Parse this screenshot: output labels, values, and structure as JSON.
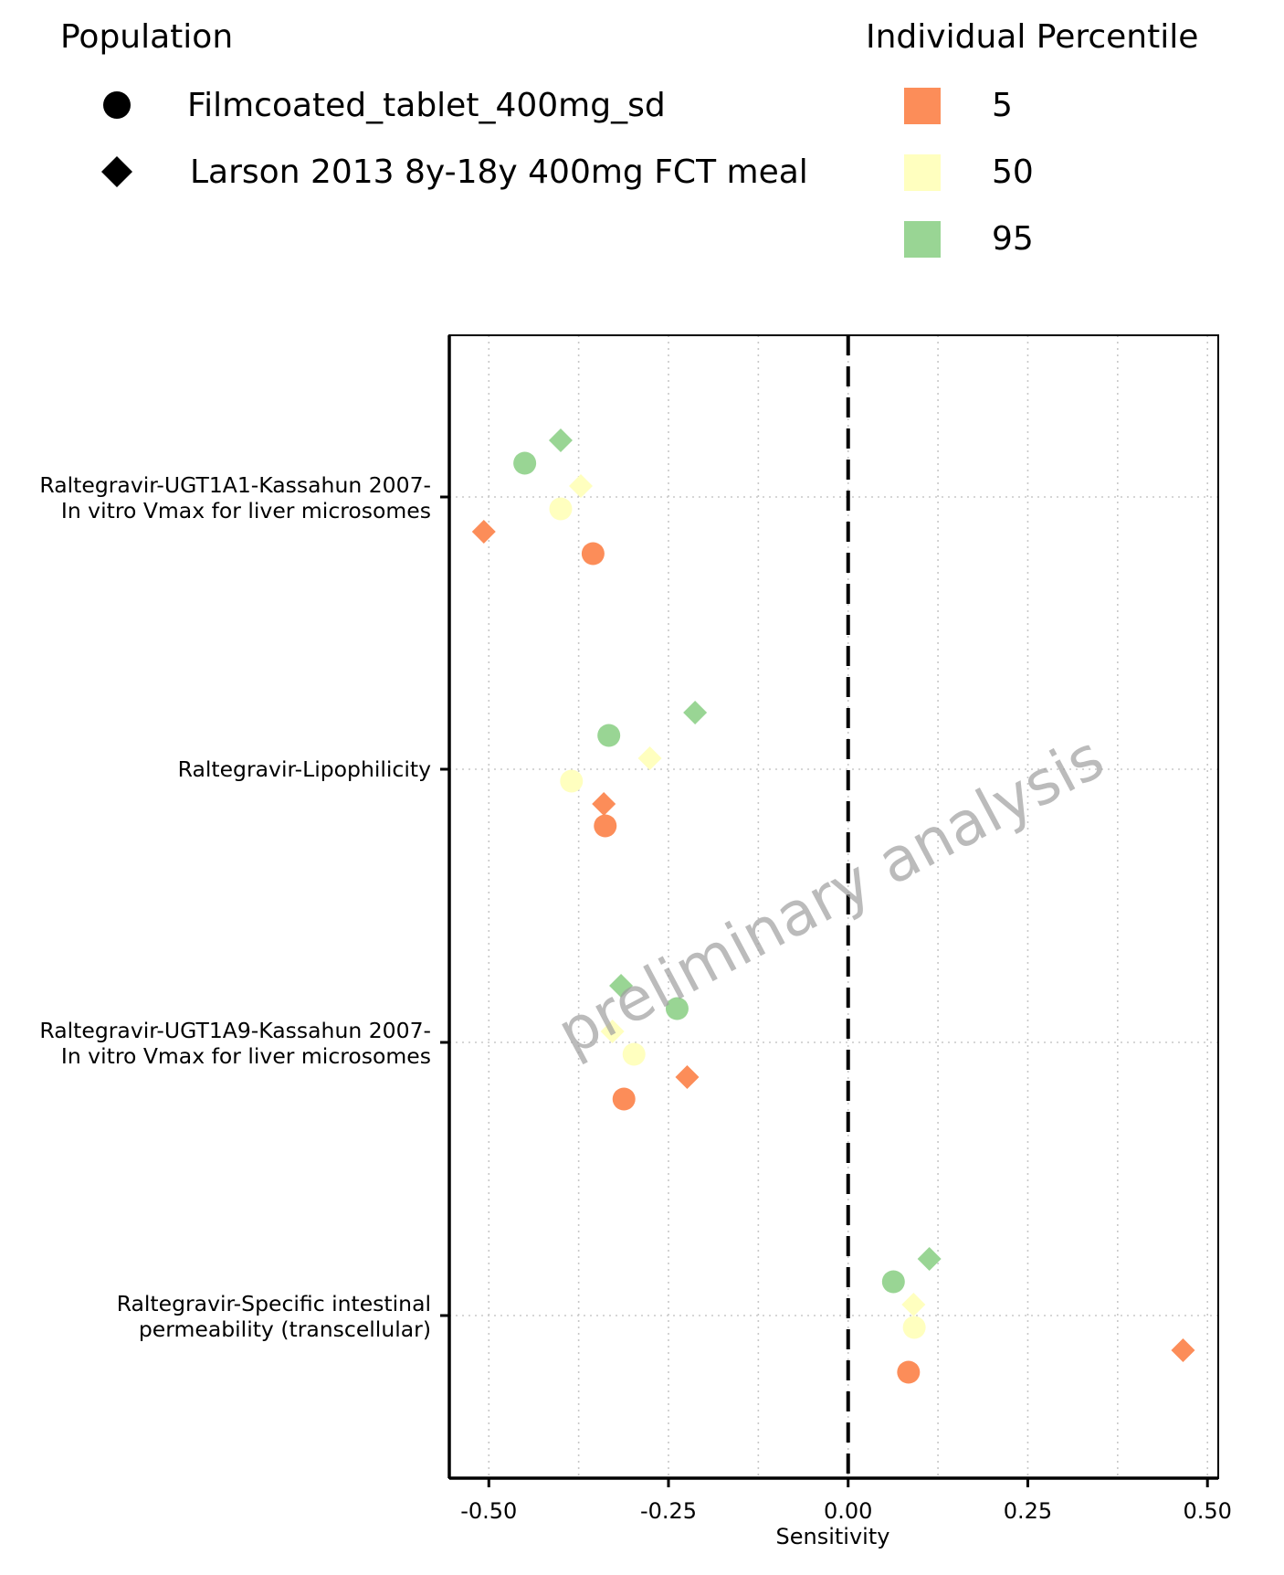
{
  "chart_data": {
    "type": "scatter",
    "title": "",
    "xlabel": "Sensitivity",
    "ylabel": "",
    "xlim": [
      -0.555,
      0.515
    ],
    "x_ticks": [
      -0.5,
      -0.25,
      0,
      0.25,
      0.5
    ],
    "x_tick_labels": [
      "-0.50",
      "-0.25",
      "0.00",
      "0.25",
      "0.50"
    ],
    "reference_line": {
      "x": 0,
      "style": "dashed",
      "color": "#000000"
    },
    "grid": true,
    "legend_placement": "top",
    "categories": [
      {
        "line1": "Raltegravir-UGT1A1-Kassahun 2007-",
        "line2": "In vitro Vmax for liver microsomes"
      },
      {
        "line1": "Raltegravir-Lipophilicity",
        "line2": ""
      },
      {
        "line1": "Raltegravir-UGT1A9-Kassahun 2007-",
        "line2": "In vitro Vmax for liver microsomes"
      },
      {
        "line1": "Raltegravir-Specific intestinal",
        "line2": "permeability (transcellular)"
      }
    ],
    "legend_population": {
      "title": "Population",
      "items": [
        {
          "label": "Filmcoated_tablet_400mg_sd",
          "shape": "circle"
        },
        {
          "label": "Larson 2013 8y-18y 400mg FCT meal",
          "shape": "diamond"
        }
      ]
    },
    "legend_percentile": {
      "title": "Individual Percentile",
      "items": [
        {
          "label": "5",
          "color": "#fc8d59"
        },
        {
          "label": "50",
          "color": "#ffffbf"
        },
        {
          "label": "95",
          "color": "#99d594"
        }
      ]
    },
    "points": [
      {
        "category": 0,
        "population": 1,
        "percentile": 2,
        "x": -0.4
      },
      {
        "category": 0,
        "population": 0,
        "percentile": 2,
        "x": -0.45
      },
      {
        "category": 0,
        "population": 1,
        "percentile": 1,
        "x": -0.372
      },
      {
        "category": 0,
        "population": 0,
        "percentile": 1,
        "x": -0.4
      },
      {
        "category": 0,
        "population": 1,
        "percentile": 0,
        "x": -0.507
      },
      {
        "category": 0,
        "population": 0,
        "percentile": 0,
        "x": -0.355
      },
      {
        "category": 1,
        "population": 1,
        "percentile": 2,
        "x": -0.213
      },
      {
        "category": 1,
        "population": 0,
        "percentile": 2,
        "x": -0.333
      },
      {
        "category": 1,
        "population": 1,
        "percentile": 1,
        "x": -0.276
      },
      {
        "category": 1,
        "population": 0,
        "percentile": 1,
        "x": -0.385
      },
      {
        "category": 1,
        "population": 1,
        "percentile": 0,
        "x": -0.34
      },
      {
        "category": 1,
        "population": 0,
        "percentile": 0,
        "x": -0.338
      },
      {
        "category": 2,
        "population": 1,
        "percentile": 2,
        "x": -0.316
      },
      {
        "category": 2,
        "population": 0,
        "percentile": 2,
        "x": -0.238
      },
      {
        "category": 2,
        "population": 1,
        "percentile": 1,
        "x": -0.328
      },
      {
        "category": 2,
        "population": 0,
        "percentile": 1,
        "x": -0.298
      },
      {
        "category": 2,
        "population": 1,
        "percentile": 0,
        "x": -0.224
      },
      {
        "category": 2,
        "population": 0,
        "percentile": 0,
        "x": -0.312
      },
      {
        "category": 3,
        "population": 1,
        "percentile": 2,
        "x": 0.113
      },
      {
        "category": 3,
        "population": 0,
        "percentile": 2,
        "x": 0.063
      },
      {
        "category": 3,
        "population": 1,
        "percentile": 1,
        "x": 0.091
      },
      {
        "category": 3,
        "population": 0,
        "percentile": 1,
        "x": 0.092
      },
      {
        "category": 3,
        "population": 1,
        "percentile": 0,
        "x": 0.466
      },
      {
        "category": 3,
        "population": 0,
        "percentile": 0,
        "x": 0.084
      }
    ],
    "watermark": "preliminary analysis"
  }
}
